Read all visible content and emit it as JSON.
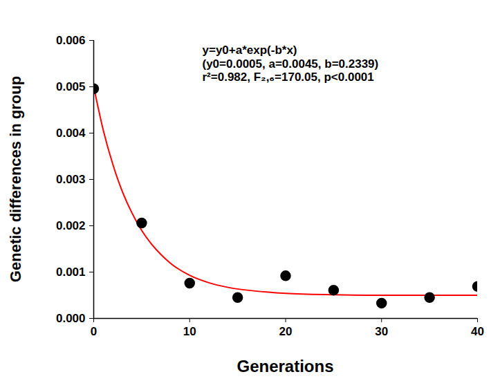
{
  "chart_data": {
    "type": "scatter",
    "x_label": "Generations",
    "y_label": "Genetic differences in group",
    "annotations": [
      "y=y0+a*exp(-b*x)",
      "(y0=0.0005, a=0.0045, b=0.2339)",
      "r²=0.982, F₂,₆=170.05, p<0.0001"
    ],
    "xlim": [
      0,
      40
    ],
    "xticks": [
      0,
      10,
      20,
      30,
      40
    ],
    "ylim": [
      0,
      0.006
    ],
    "yticks": [
      {
        "value": 0,
        "label": "0.000"
      },
      {
        "value": 0.001,
        "label": "0.001"
      },
      {
        "value": 0.002,
        "label": "0.002"
      },
      {
        "value": 0.003,
        "label": "0.003"
      },
      {
        "value": 0.004,
        "label": "0.004"
      },
      {
        "value": 0.005,
        "label": "0.005"
      },
      {
        "value": 0.006,
        "label": "0.006"
      }
    ],
    "grid": false,
    "series": [
      {
        "type": "scatter",
        "color": "#000000",
        "marker": "circle",
        "x": [
          0,
          5,
          10,
          15,
          20,
          25,
          30,
          35,
          40
        ],
        "values": [
          0.00496,
          0.00206,
          0.00076,
          0.00045,
          0.00092,
          0.00061,
          0.00033,
          0.00045,
          0.00069
        ]
      },
      {
        "type": "line",
        "color": "#ff0000",
        "line_style": "solid",
        "x": [
          0,
          1,
          2,
          3,
          4,
          5,
          6,
          7,
          8,
          10,
          12,
          14,
          16,
          18,
          20,
          25,
          30,
          35,
          40
        ],
        "values": [
          0.005,
          0.00406,
          0.00332,
          0.00273,
          0.00227,
          0.0019,
          0.00161,
          0.00138,
          0.00119,
          0.00093,
          0.00077,
          0.00067,
          0.00061,
          0.00057,
          0.00054,
          0.00051,
          0.0005,
          0.0005,
          0.0005
        ]
      }
    ]
  }
}
